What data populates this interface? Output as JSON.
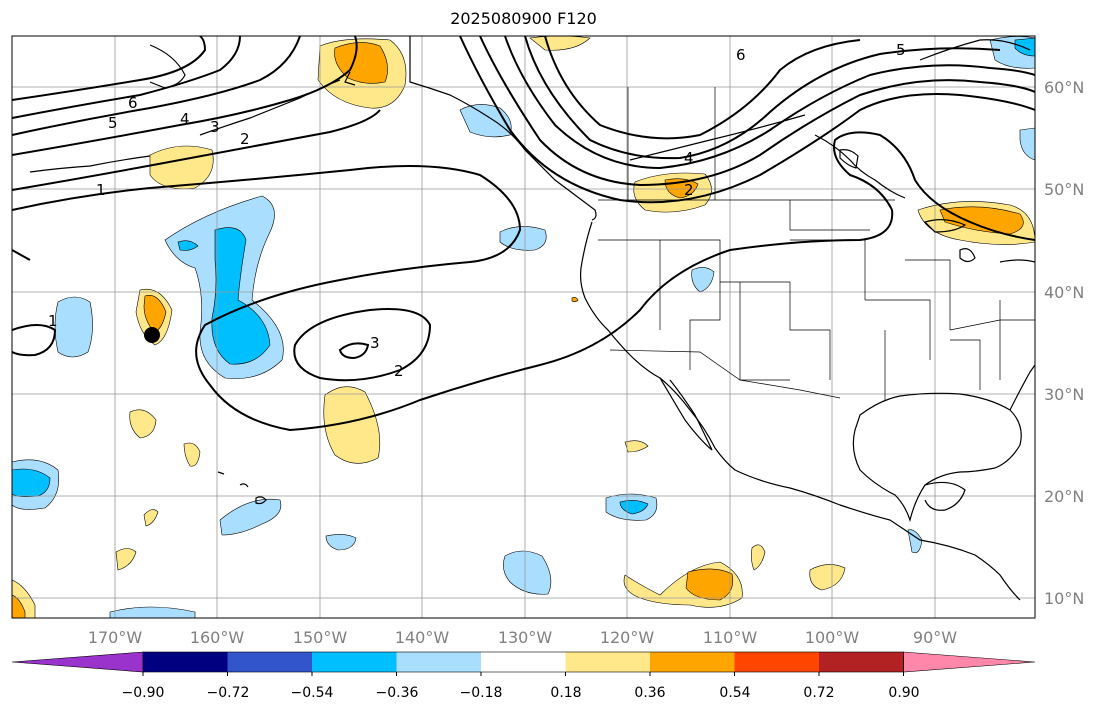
{
  "map": {
    "title": "2025080900 F120",
    "longitude_labels": [
      "170°W",
      "160°W",
      "150°W",
      "140°W",
      "130°W",
      "120°W",
      "110°W",
      "100°W",
      "90°W"
    ],
    "latitude_labels": [
      "60°N",
      "50°N",
      "40°N",
      "30°N",
      "20°N",
      "10°N"
    ],
    "contour_labels": [
      "6",
      "5",
      "4",
      "3",
      "2",
      "1",
      "3",
      "2",
      "1",
      "2",
      "4",
      "6",
      "5"
    ],
    "colors": {
      "coastline": "#000000",
      "grid": "#999999",
      "contour": "#000000"
    }
  },
  "colorbar": {
    "tick_labels": [
      "−0.90",
      "−0.72",
      "−0.54",
      "−0.36",
      "−0.18",
      "0.18",
      "0.36",
      "0.54",
      "0.72",
      "0.90"
    ],
    "colors": [
      "#9933cc",
      "#000080",
      "#3355cc",
      "#00bfff",
      "#aadeff",
      "#ffffff",
      "#ffe88a",
      "#ffa500",
      "#ff4500",
      "#b22222",
      "#ff88aa"
    ]
  }
}
